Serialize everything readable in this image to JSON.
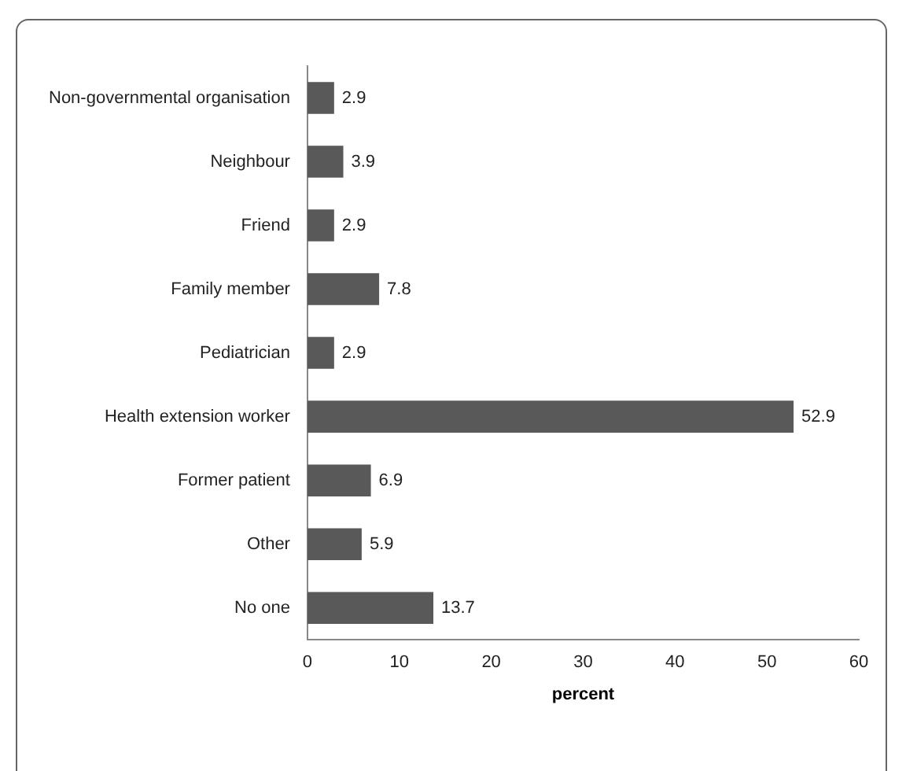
{
  "chart_data": {
    "type": "bar",
    "orientation": "horizontal",
    "xlabel": "percent",
    "categories": [
      "Non-governmental organisation",
      "Neighbour",
      "Friend",
      "Family member",
      "Pediatrician",
      "Health extension worker",
      "Former patient",
      "Other",
      "No one"
    ],
    "values": [
      2.9,
      3.9,
      2.9,
      7.8,
      2.9,
      52.9,
      6.9,
      5.9,
      13.7
    ],
    "color": "#595959",
    "xlim": [
      0,
      60
    ],
    "xticks": [
      0,
      10,
      20,
      30,
      40,
      50,
      60
    ],
    "grid": false,
    "legend": false,
    "data_labels": true
  }
}
